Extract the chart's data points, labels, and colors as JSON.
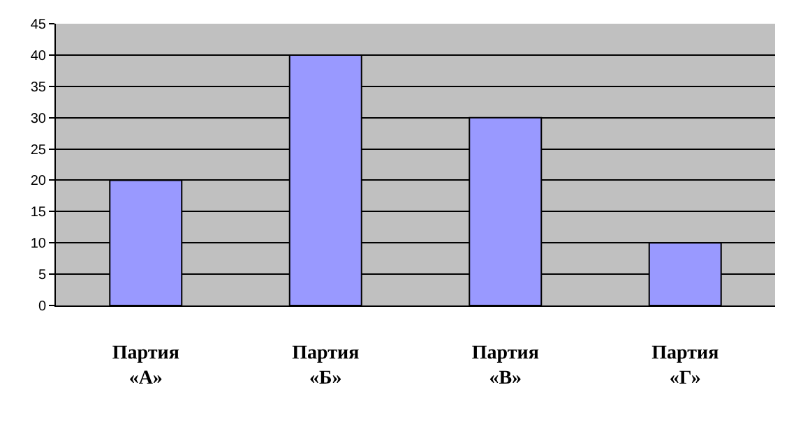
{
  "chart_data": {
    "type": "bar",
    "categories": [
      "Партия\n«А»",
      "Партия\n«Б»",
      "Партия\n«В»",
      "Партия\n«Г»"
    ],
    "values": [
      20,
      40,
      30,
      10
    ],
    "color": "#9999ff",
    "ylim": [
      0,
      45
    ],
    "yticks": [
      0,
      5,
      10,
      15,
      20,
      25,
      30,
      35,
      40,
      45
    ],
    "grid": "y"
  }
}
